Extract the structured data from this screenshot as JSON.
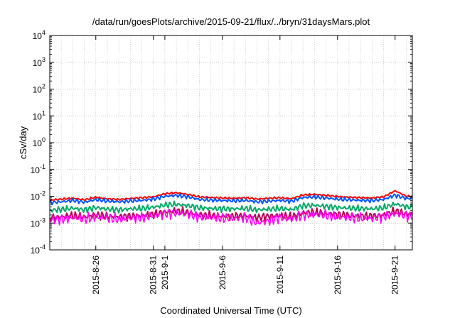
{
  "chart_data": {
    "type": "line",
    "title": "/data/run/goesPlots/archive/2015-09-21/flux/../bryn/31daysMars.plot",
    "xlabel": "Coordinated Universal Time (UTC)",
    "ylabel": "cSv/day",
    "yscale": "log",
    "ylim": [
      0.0001,
      10000
    ],
    "y_ticks": [
      {
        "base": "10",
        "exp": "-4",
        "value": 0.0001
      },
      {
        "base": "10",
        "exp": "-3",
        "value": 0.001
      },
      {
        "base": "10",
        "exp": "-2",
        "value": 0.01
      },
      {
        "base": "10",
        "exp": "-1",
        "value": 0.1
      },
      {
        "base": "10",
        "exp": "0",
        "value": 1
      },
      {
        "base": "10",
        "exp": "1",
        "value": 10
      },
      {
        "base": "10",
        "exp": "2",
        "value": 100
      },
      {
        "base": "10",
        "exp": "3",
        "value": 1000
      },
      {
        "base": "10",
        "exp": "4",
        "value": 10000
      }
    ],
    "xlim": [
      "2015-08-22",
      "2015-09-22 12:00"
    ],
    "x_ticks": [
      {
        "label": "2015-8-26",
        "date": "2015-08-26"
      },
      {
        "label": "2015-8-31",
        "date": "2015-08-31"
      },
      {
        "label": "2015-9-1",
        "date": "2015-09-01"
      },
      {
        "label": "2015-9-6",
        "date": "2015-09-06"
      },
      {
        "label": "2015-9-11",
        "date": "2015-09-11"
      },
      {
        "label": "2015-9-16",
        "date": "2015-09-16"
      },
      {
        "label": "2015-9-21",
        "date": "2015-09-21"
      }
    ],
    "grid": true,
    "legend": "none",
    "dates": [
      "2015-08-22",
      "2015-08-23",
      "2015-08-24",
      "2015-08-25",
      "2015-08-26",
      "2015-08-27",
      "2015-08-28",
      "2015-08-29",
      "2015-08-30",
      "2015-08-31",
      "2015-09-01",
      "2015-09-02",
      "2015-09-03",
      "2015-09-04",
      "2015-09-05",
      "2015-09-06",
      "2015-09-07",
      "2015-09-08",
      "2015-09-09",
      "2015-09-10",
      "2015-09-11",
      "2015-09-12",
      "2015-09-13",
      "2015-09-14",
      "2015-09-15",
      "2015-09-16",
      "2015-09-17",
      "2015-09-18",
      "2015-09-19",
      "2015-09-20",
      "2015-09-21",
      "2015-09-22"
    ],
    "series": [
      {
        "color": "#ff0000",
        "values": [
          0.0072,
          0.0078,
          0.0085,
          0.0074,
          0.0092,
          0.008,
          0.0076,
          0.0083,
          0.0088,
          0.0095,
          0.0125,
          0.0135,
          0.0118,
          0.0095,
          0.009,
          0.0086,
          0.0084,
          0.0088,
          0.0079,
          0.0084,
          0.0088,
          0.0081,
          0.0112,
          0.0118,
          0.0108,
          0.0098,
          0.0092,
          0.0088,
          0.0086,
          0.0095,
          0.016,
          0.01
        ]
      },
      {
        "color": "#0055ff",
        "values": [
          0.0058,
          0.0062,
          0.007,
          0.006,
          0.0075,
          0.0066,
          0.0062,
          0.0067,
          0.007,
          0.0078,
          0.01,
          0.0108,
          0.0095,
          0.0076,
          0.0072,
          0.0069,
          0.0068,
          0.007,
          0.0062,
          0.0066,
          0.007,
          0.0065,
          0.009,
          0.0094,
          0.0086,
          0.0078,
          0.0074,
          0.007,
          0.0069,
          0.0076,
          0.011,
          0.0082
        ]
      },
      {
        "color": "#00aa66",
        "values": [
          0.003,
          0.0032,
          0.0036,
          0.0031,
          0.0038,
          0.0033,
          0.0031,
          0.0034,
          0.0035,
          0.0039,
          0.0047,
          0.005,
          0.0045,
          0.0037,
          0.0035,
          0.0034,
          0.0034,
          0.0035,
          0.0031,
          0.0033,
          0.0035,
          0.0032,
          0.0044,
          0.0046,
          0.0042,
          0.0038,
          0.0036,
          0.0035,
          0.0034,
          0.0037,
          0.0052,
          0.004
        ]
      },
      {
        "color": "#bb0055",
        "values": [
          0.0016,
          0.0017,
          0.0019,
          0.0017,
          0.002,
          0.0018,
          0.0017,
          0.0018,
          0.0019,
          0.0021,
          0.0026,
          0.0028,
          0.0025,
          0.002,
          0.0019,
          0.0018,
          0.0018,
          0.0019,
          0.0016,
          0.0018,
          0.0019,
          0.0017,
          0.0024,
          0.0025,
          0.0023,
          0.0021,
          0.0019,
          0.0019,
          0.0018,
          0.002,
          0.0028,
          0.0022
        ]
      },
      {
        "color": "#ff00ff",
        "values": [
          0.0013,
          0.0014,
          0.0016,
          0.0014,
          0.0017,
          0.0015,
          0.0014,
          0.0015,
          0.0016,
          0.0018,
          0.0022,
          0.0024,
          0.0021,
          0.0017,
          0.0016,
          0.0015,
          0.0015,
          0.0016,
          0.001,
          0.0012,
          0.0016,
          0.0014,
          0.002,
          0.0021,
          0.0019,
          0.0017,
          0.0016,
          0.0015,
          0.0015,
          0.0017,
          0.0023,
          0.0018
        ]
      }
    ]
  }
}
